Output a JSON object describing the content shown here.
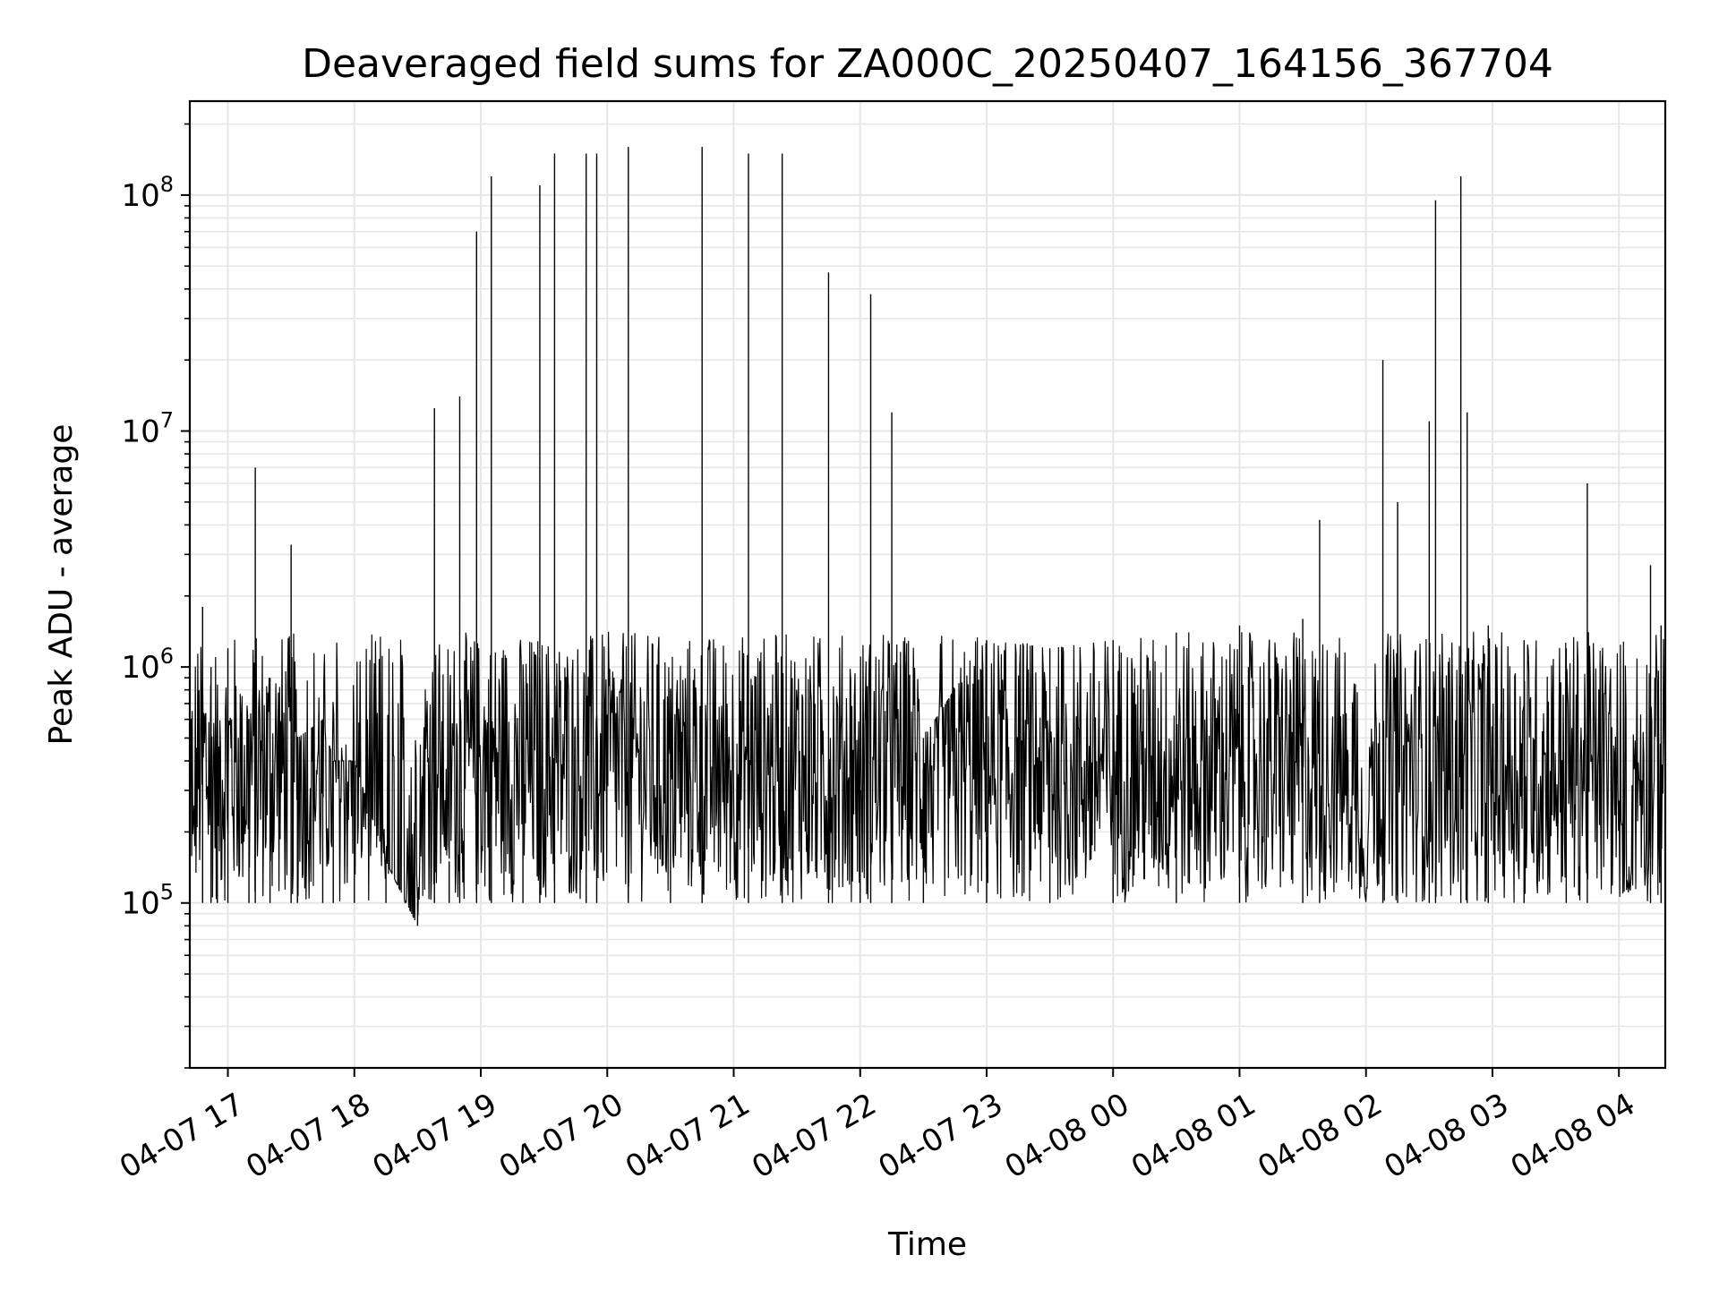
{
  "chart_data": {
    "type": "line",
    "title": "Deaveraged field sums for ZA000C_20250407_164156_367704",
    "xlabel": "Time",
    "ylabel": "Peak ADU - average",
    "yscale": "log",
    "ylim": [
      20000,
      250000000
    ],
    "xlim": [
      "2025-04-07 16:41:56",
      "2025-04-08 04:22:00"
    ],
    "grid": true,
    "line_color": "#000000",
    "grid_color": "#e6e6e6",
    "x_ticks": [
      {
        "label": "04-07 17",
        "time": "2025-04-07 17:00"
      },
      {
        "label": "04-07 18",
        "time": "2025-04-07 18:00"
      },
      {
        "label": "04-07 19",
        "time": "2025-04-07 19:00"
      },
      {
        "label": "04-07 20",
        "time": "2025-04-07 20:00"
      },
      {
        "label": "04-07 21",
        "time": "2025-04-07 21:00"
      },
      {
        "label": "04-07 22",
        "time": "2025-04-07 22:00"
      },
      {
        "label": "04-07 23",
        "time": "2025-04-07 23:00"
      },
      {
        "label": "04-08 00",
        "time": "2025-04-08 00:00"
      },
      {
        "label": "04-08 01",
        "time": "2025-04-08 01:00"
      },
      {
        "label": "04-08 02",
        "time": "2025-04-08 02:00"
      },
      {
        "label": "04-08 03",
        "time": "2025-04-08 03:00"
      },
      {
        "label": "04-08 04",
        "time": "2025-04-08 04:00"
      }
    ],
    "y_ticks": [
      {
        "base": "10",
        "exp": "5",
        "value": 100000
      },
      {
        "base": "10",
        "exp": "6",
        "value": 1000000
      },
      {
        "base": "10",
        "exp": "7",
        "value": 10000000
      },
      {
        "base": "10",
        "exp": "8",
        "value": 100000000
      }
    ],
    "series": [
      {
        "values_note_free": true,
        "x": [
          "2025-04-07 16:42",
          "2025-04-07 16:48",
          "2025-04-07 16:52",
          "2025-04-07 16:55",
          "2025-04-07 17:00",
          "2025-04-07 17:10",
          "2025-04-07 17:13",
          "2025-04-07 17:20",
          "2025-04-07 17:30",
          "2025-04-07 17:33",
          "2025-04-07 17:45",
          "2025-04-07 17:50",
          "2025-04-07 18:00",
          "2025-04-07 18:15",
          "2025-04-07 18:30",
          "2025-04-07 18:38",
          "2025-04-07 18:45",
          "2025-04-07 18:50",
          "2025-04-07 18:58",
          "2025-04-07 19:05",
          "2025-04-07 19:20",
          "2025-04-07 19:28",
          "2025-04-07 19:35",
          "2025-04-07 19:50",
          "2025-04-07 19:55",
          "2025-04-07 20:10",
          "2025-04-07 20:30",
          "2025-04-07 20:45",
          "2025-04-07 21:07",
          "2025-04-07 21:23",
          "2025-04-07 21:45",
          "2025-04-07 22:00",
          "2025-04-07 22:05",
          "2025-04-07 22:15",
          "2025-04-07 22:30",
          "2025-04-07 23:00",
          "2025-04-07 23:30",
          "2025-04-08 00:00",
          "2025-04-08 00:30",
          "2025-04-08 01:00",
          "2025-04-08 01:30",
          "2025-04-08 01:38",
          "2025-04-08 02:00",
          "2025-04-08 02:08",
          "2025-04-08 02:15",
          "2025-04-08 02:30",
          "2025-04-08 02:33",
          "2025-04-08 02:45",
          "2025-04-08 02:48",
          "2025-04-08 02:58",
          "2025-04-08 03:15",
          "2025-04-08 03:35",
          "2025-04-08 03:45",
          "2025-04-08 04:05",
          "2025-04-08 04:15",
          "2025-04-08 04:20"
        ],
        "y": [
          100000,
          1800000,
          1000000,
          400000,
          1200000,
          600000,
          7000000,
          900000,
          3300000,
          500000,
          600000,
          400000,
          400000,
          150000,
          80000,
          12500000,
          150000,
          14000000,
          70000000,
          120000000,
          800000,
          110000000,
          150000000,
          150000000,
          150000000,
          160000000,
          800000,
          160000000,
          150000000,
          150000000,
          47000000,
          300000,
          38000000,
          12000000,
          500000,
          1300000,
          1200000,
          1300000,
          1400000,
          1500000,
          1600000,
          4200000,
          100000,
          20000000,
          5000000,
          11000000,
          95000000,
          120000000,
          12000000,
          1500000,
          1300000,
          1200000,
          6000000,
          100000,
          2700000,
          1500000
        ]
      }
    ]
  }
}
